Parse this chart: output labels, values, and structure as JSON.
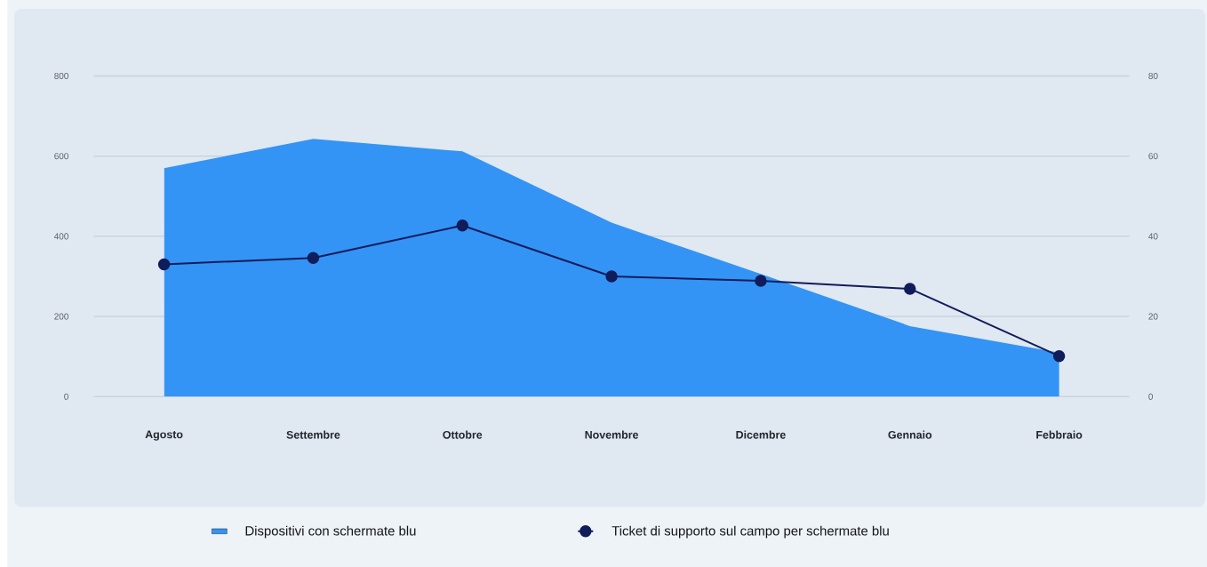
{
  "chart_data": {
    "type": "area",
    "categories": [
      "Agosto",
      "Settembre",
      "Ottobre",
      "Novembre",
      "Dicembre",
      "Gennaio",
      "Febbraio"
    ],
    "series": [
      {
        "name": "Dispositivi con schermate blu",
        "color": "#3394f5",
        "values": [
          570,
          643,
          612,
          434,
          306,
          176,
          110
        ]
      },
      {
        "name": "Ticket di supporto sul campo per schermate blu",
        "type": "line",
        "axis": "y2",
        "color": "#111c5a",
        "marker": "circle",
        "values": [
          33,
          34.6,
          42.7,
          30,
          28.9,
          26.9,
          10.1
        ]
      }
    ],
    "ylim": [
      0,
      800
    ],
    "yticks": [
      0,
      200,
      400,
      600,
      800
    ],
    "y2lim": [
      0,
      80
    ],
    "y2ticks": [
      0,
      20,
      40,
      60,
      80
    ],
    "grid": "y",
    "legend": "bottom"
  }
}
